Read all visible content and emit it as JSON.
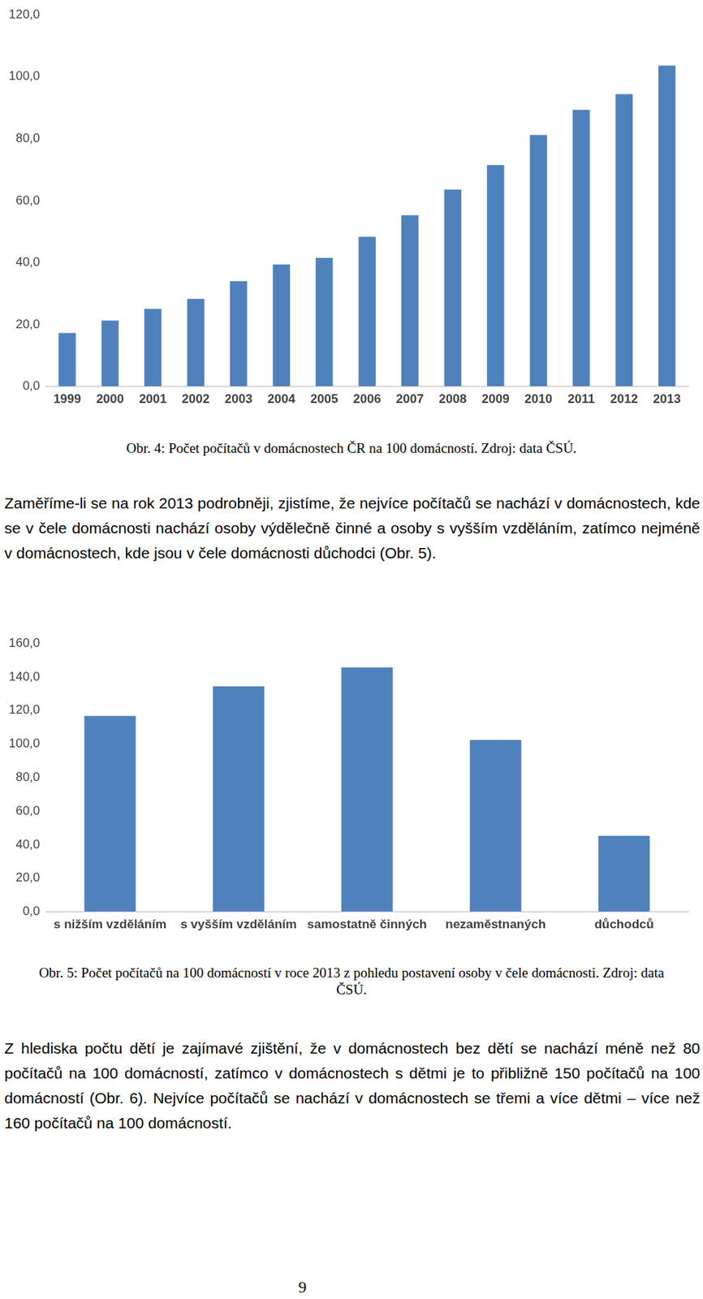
{
  "chart_data": [
    {
      "type": "bar",
      "categories": [
        "1999",
        "2000",
        "2001",
        "2002",
        "2003",
        "2004",
        "2005",
        "2006",
        "2007",
        "2008",
        "2009",
        "2010",
        "2011",
        "2012",
        "2013"
      ],
      "values": [
        17.3,
        21.3,
        25.1,
        28.3,
        34.0,
        39.4,
        41.5,
        48.3,
        55.3,
        63.6,
        71.5,
        81.2,
        89.3,
        94.4,
        103.6
      ],
      "color": "#4f81bd",
      "ylim": [
        0,
        120
      ],
      "yticks": [
        {
          "value": 0,
          "label": "0,0"
        },
        {
          "value": 20,
          "label": "20,0"
        },
        {
          "value": 40,
          "label": "40,0"
        },
        {
          "value": 60,
          "label": "60,0"
        },
        {
          "value": 80,
          "label": "80,0"
        },
        {
          "value": 100,
          "label": "100,0"
        },
        {
          "value": 120,
          "label": "120,0"
        }
      ],
      "grid": false
    },
    {
      "type": "bar",
      "categories": [
        "s nižším vzděláním",
        "s vyšším vzděláním",
        "samostatně činných",
        "nezaměstnaných",
        "důchodců"
      ],
      "values": [
        116.7,
        134.4,
        145.7,
        102.4,
        45.3
      ],
      "color": "#4f81bd",
      "ylim": [
        0,
        160
      ],
      "yticks": [
        {
          "value": 0,
          "label": "0,0"
        },
        {
          "value": 20,
          "label": "20,0"
        },
        {
          "value": 40,
          "label": "40,0"
        },
        {
          "value": 60,
          "label": "60,0"
        },
        {
          "value": 80,
          "label": "80,0"
        },
        {
          "value": 100,
          "label": "100,0"
        },
        {
          "value": 120,
          "label": "120,0"
        },
        {
          "value": 140,
          "label": "140,0"
        },
        {
          "value": 160,
          "label": "160,0"
        }
      ],
      "grid": false
    }
  ],
  "document": {
    "caption_1": "Obr. 4: Počet počítačů v domácnostech ČR na 100 domácností. Zdroj: data ČSÚ.",
    "paragraph_1": "Zaměříme-li se na rok 2013 podrobněji, zjistíme, že nejvíce počítačů se nachází v domácnostech, kde se v čele domácnosti nachází osoby výdělečně činné a osoby s vyšším vzděláním, zatímco nejméně v domácnostech, kde jsou v čele domácnosti důchodci (Obr. 5).",
    "caption_2": "Obr. 5: Počet počítačů na 100 domácností v roce 2013 z pohledu postavení osoby v čele domácnosti. Zdroj: data ČSÚ.",
    "paragraph_2": "Z hlediska počtu dětí je zajímavé zjištění, že v domácnostech bez dětí se nachází méně než 80 počítačů na 100 domácností, zatímco v domácnostech s dětmi je to přibližně 150 počítačů na 100 domácností (Obr. 6). Nejvíce počítačů se nachází v domácnostech se třemi a více dětmi – více než 160 počítačů na 100 domácností.",
    "page_number": "9"
  }
}
